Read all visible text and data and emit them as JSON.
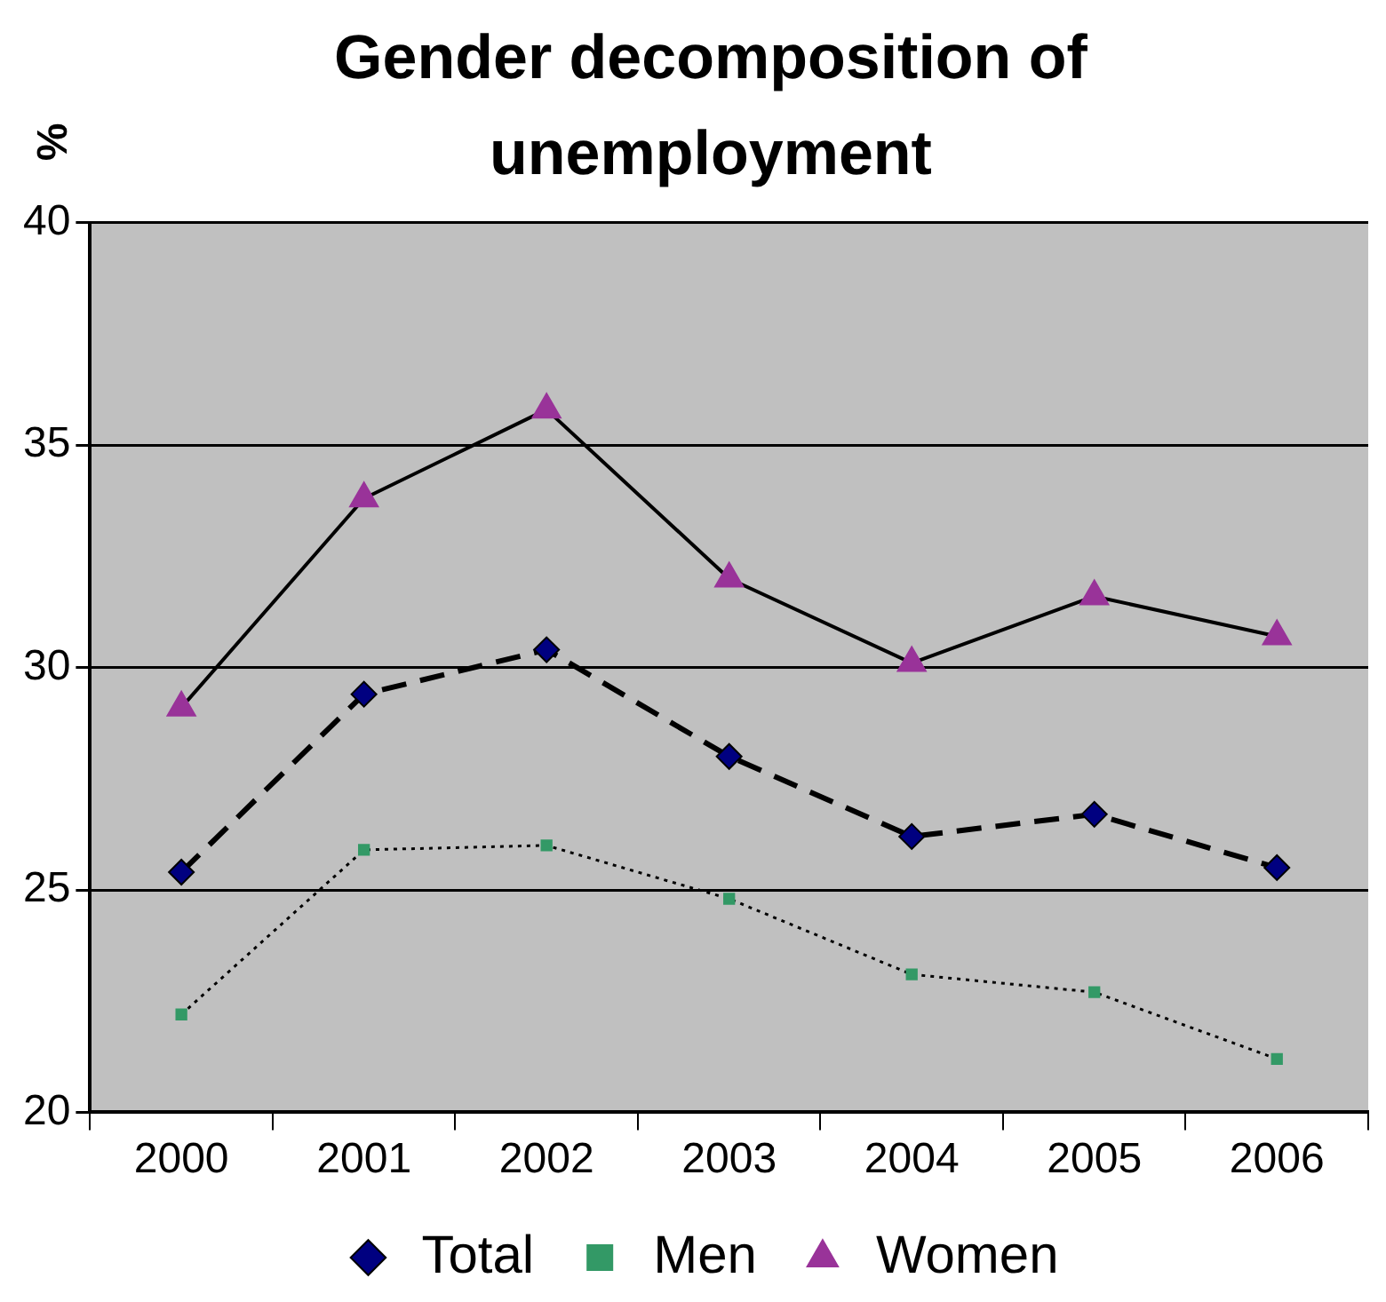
{
  "chart_data": {
    "type": "line",
    "title": "Gender decomposition of unemployment",
    "ylabel": "%",
    "categories": [
      "2000",
      "2001",
      "2002",
      "2003",
      "2004",
      "2005",
      "2006"
    ],
    "series": [
      {
        "name": "Total",
        "color": "#000080",
        "line_style": "dashed",
        "marker": "diamond",
        "values": [
          25.4,
          29.4,
          30.4,
          28.0,
          26.2,
          26.7,
          25.5
        ]
      },
      {
        "name": "Men",
        "color": "#339966",
        "line_style": "dotted",
        "marker": "square",
        "values": [
          22.2,
          25.9,
          26.0,
          24.8,
          23.1,
          22.7,
          21.2
        ]
      },
      {
        "name": "Women",
        "color": "#993399",
        "line_style": "solid",
        "marker": "triangle",
        "values": [
          29.1,
          33.8,
          35.8,
          32.0,
          30.1,
          31.6,
          30.7
        ]
      }
    ],
    "ylim": [
      20,
      40
    ],
    "yticks": [
      20,
      25,
      30,
      35,
      40
    ],
    "grid": "y",
    "legend": "bottom"
  }
}
